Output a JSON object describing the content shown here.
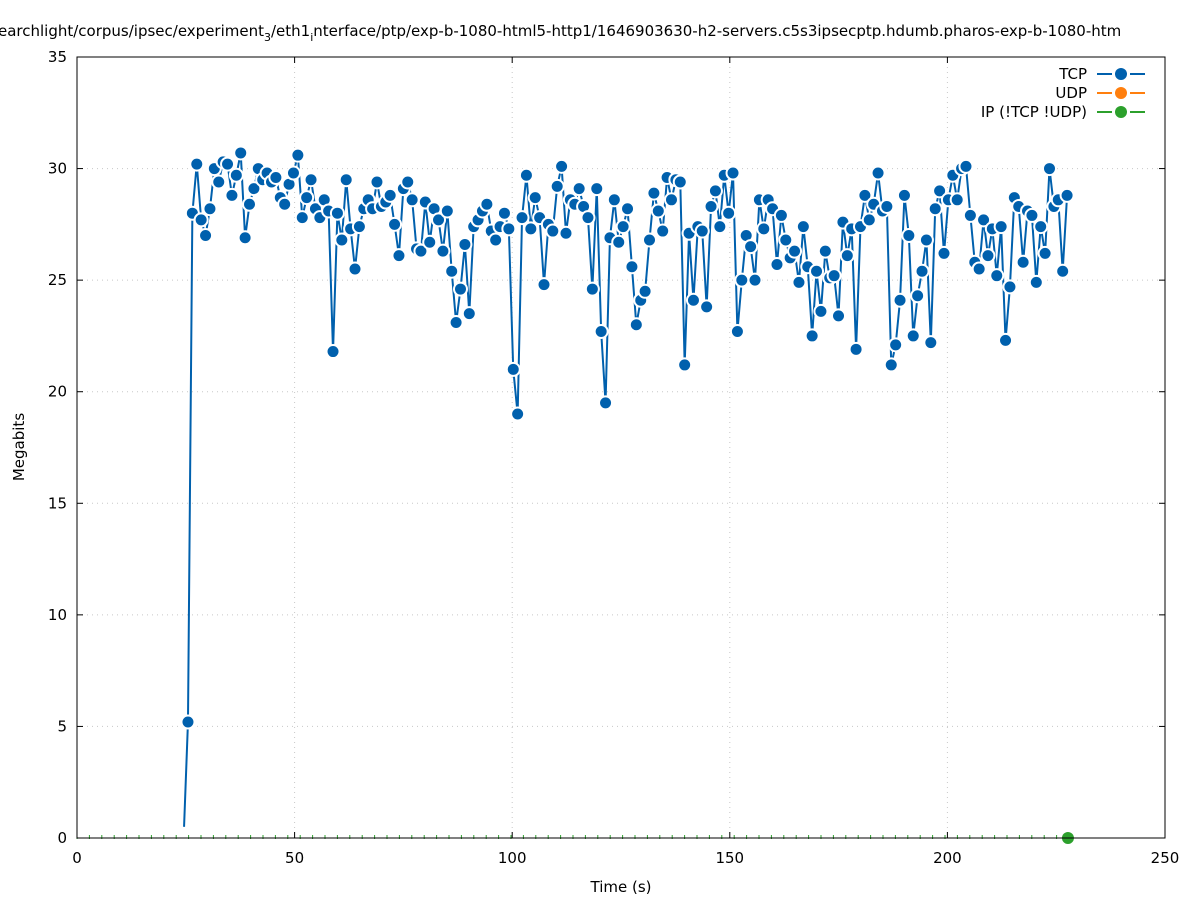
{
  "chart_data": {
    "type": "line",
    "title_parts": [
      "earchlight/corpus/ipsec/experiment",
      "3",
      "/eth1",
      "i",
      "nterface/ptp/exp-b-1080-html5-http1/1646903630-h2-servers.c5s3ipsecptp.hdumb.pharos-exp-b-1080-htm"
    ],
    "xlabel": "Time (s)",
    "ylabel": "Megabits",
    "xlim": [
      0,
      250
    ],
    "ylim": [
      0,
      35
    ],
    "xticks": [
      0,
      50,
      100,
      150,
      200,
      250
    ],
    "yticks": [
      0,
      5,
      10,
      15,
      20,
      25,
      30,
      35
    ],
    "grid": true,
    "legend_position": "top-right",
    "series": [
      {
        "name": "TCP",
        "color": "#0060ad",
        "line_start": [
          24.6,
          0.5
        ],
        "x_start": 25.5,
        "x_step": 1.01,
        "values": [
          5.2,
          28.0,
          30.2,
          27.7,
          27.0,
          28.2,
          30.0,
          29.4,
          30.3,
          30.2,
          28.8,
          29.7,
          30.7,
          26.9,
          28.4,
          29.1,
          30.0,
          29.5,
          29.8,
          29.4,
          29.6,
          28.7,
          28.4,
          29.3,
          29.8,
          30.6,
          27.8,
          28.7,
          29.5,
          28.2,
          27.8,
          28.6,
          28.1,
          21.8,
          28.0,
          26.8,
          29.5,
          27.3,
          25.5,
          27.4,
          28.2,
          28.6,
          28.2,
          29.4,
          28.3,
          28.5,
          28.8,
          27.5,
          26.1,
          29.1,
          29.4,
          28.6,
          26.4,
          26.3,
          28.5,
          26.7,
          28.2,
          27.7,
          26.3,
          28.1,
          25.4,
          23.1,
          24.6,
          26.6,
          23.5,
          27.4,
          27.7,
          28.1,
          28.4,
          27.2,
          26.8,
          27.4,
          28.0,
          27.3,
          21.0,
          19.0,
          27.8,
          29.7,
          27.3,
          28.7,
          27.8,
          24.8,
          27.5,
          27.2,
          29.2,
          30.1,
          27.1,
          28.6,
          28.4,
          29.1,
          28.3,
          27.8,
          24.6,
          29.1,
          22.7,
          19.5,
          26.9,
          28.6,
          26.7,
          27.4,
          28.2,
          25.6,
          23.0,
          24.1,
          24.5,
          26.8,
          28.9,
          28.1,
          27.2,
          29.6,
          28.6,
          29.5,
          29.4,
          21.2,
          27.1,
          24.1,
          27.4,
          27.2,
          23.8,
          28.3,
          29.0,
          27.4,
          29.7,
          28.0,
          29.8,
          22.7,
          25.0,
          27.0,
          26.5,
          25.0,
          28.6,
          27.3,
          28.6,
          28.2,
          25.7,
          27.9,
          26.8,
          26.0,
          26.3,
          24.9,
          27.4,
          25.6,
          22.5,
          25.4,
          23.6,
          26.3,
          25.1,
          25.2,
          23.4,
          27.6,
          26.1,
          27.3,
          21.9,
          27.4,
          28.8,
          27.7,
          28.4,
          29.8,
          28.1,
          28.3,
          21.2,
          22.1,
          24.1,
          28.8,
          27.0,
          22.5,
          24.3,
          25.4,
          26.8,
          22.2,
          28.2,
          29.0,
          26.2,
          28.6,
          29.7,
          28.6,
          30.0,
          30.1,
          27.9,
          25.8,
          25.5,
          27.7,
          26.1,
          27.3,
          25.2,
          27.4,
          22.3,
          24.7,
          28.7,
          28.3,
          25.8,
          28.1,
          27.9,
          24.9,
          27.4,
          26.2,
          30.0,
          28.3,
          28.6,
          25.4,
          28.8
        ]
      },
      {
        "name": "UDP",
        "color": "#ff7f0e",
        "x": [],
        "values": []
      },
      {
        "name": "IP (!TCP  !UDP)",
        "color": "#2ca02c",
        "x": [
          0,
          227.7
        ],
        "values": [
          0,
          0
        ]
      }
    ]
  }
}
